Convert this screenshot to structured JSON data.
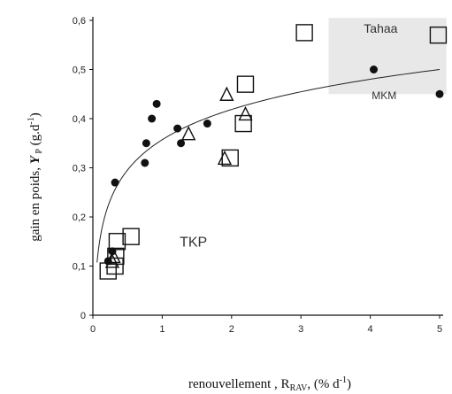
{
  "chart_data": {
    "type": "scatter",
    "title": "",
    "xlabel_parts": {
      "main": "renouvellement , R",
      "sub": "RAV",
      "tail": ", (% d",
      "sup": "-1",
      "end": ")"
    },
    "ylabel_parts": {
      "main": "gain en poids, ",
      "var": "Y",
      "sub": " P",
      "tail": " (g.d",
      "sup": "-1",
      "end": ")"
    },
    "xlim": [
      0,
      5
    ],
    "ylim": [
      0,
      0.6
    ],
    "x_ticks": [
      "0",
      "1",
      "2",
      "3",
      "4",
      "5"
    ],
    "y_ticks": [
      "0",
      "0,1",
      "0,2",
      "0,3",
      "0,4",
      "0,5",
      "0,6"
    ],
    "grid": false,
    "zones": [
      {
        "label": "Tahaa",
        "x": 4.15,
        "y": 0.575
      },
      {
        "label": "MKM",
        "x": 4.2,
        "y": 0.44
      },
      {
        "label": "TKP",
        "x": 1.45,
        "y": 0.14
      }
    ],
    "shaded_region": {
      "x": [
        3.4,
        5.1
      ],
      "y": [
        0.45,
        0.605
      ],
      "color": "#e8e8e8"
    },
    "series": [
      {
        "marker": "filled-circle",
        "points": [
          [
            0.22,
            0.11
          ],
          [
            0.28,
            0.13
          ],
          [
            0.32,
            0.27
          ],
          [
            0.75,
            0.31
          ],
          [
            0.77,
            0.35
          ],
          [
            0.85,
            0.4
          ],
          [
            0.92,
            0.43
          ],
          [
            1.22,
            0.38
          ],
          [
            1.27,
            0.35
          ],
          [
            1.65,
            0.39
          ],
          [
            4.05,
            0.5
          ],
          [
            5.0,
            0.45
          ]
        ]
      },
      {
        "marker": "open-triangle",
        "points": [
          [
            0.28,
            0.11
          ],
          [
            0.3,
            0.12
          ],
          [
            1.38,
            0.37
          ],
          [
            1.9,
            0.32
          ],
          [
            1.93,
            0.45
          ],
          [
            2.2,
            0.41
          ]
        ]
      },
      {
        "marker": "open-square",
        "points": [
          [
            0.22,
            0.09
          ],
          [
            0.32,
            0.1
          ],
          [
            0.33,
            0.12
          ],
          [
            0.35,
            0.15
          ],
          [
            0.55,
            0.16
          ],
          [
            1.98,
            0.32
          ],
          [
            2.17,
            0.39
          ],
          [
            2.2,
            0.47
          ],
          [
            3.05,
            0.575
          ],
          [
            4.98,
            0.57
          ]
        ]
      }
    ],
    "fit_curve": {
      "type": "logarithmic",
      "a": 0.3571,
      "b": 0.0888,
      "x_range": [
        0.06,
        5.0
      ]
    }
  }
}
